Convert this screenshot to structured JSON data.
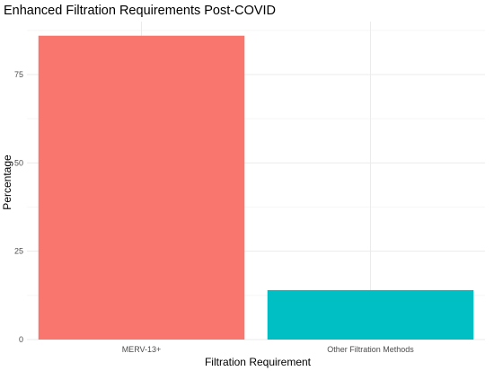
{
  "chart_data": {
    "type": "bar",
    "title": "Enhanced Filtration Requirements Post-COVID",
    "xlabel": "Filtration Requirement",
    "ylabel": "Percentage",
    "categories": [
      "MERV-13+",
      "Other Filtration Methods"
    ],
    "values": [
      86,
      14
    ],
    "colors": [
      "#F8766D",
      "#00BFC4"
    ],
    "ylim": [
      0,
      90
    ],
    "yticks": [
      0,
      25,
      50,
      75
    ],
    "grid": true,
    "legend": "none"
  }
}
